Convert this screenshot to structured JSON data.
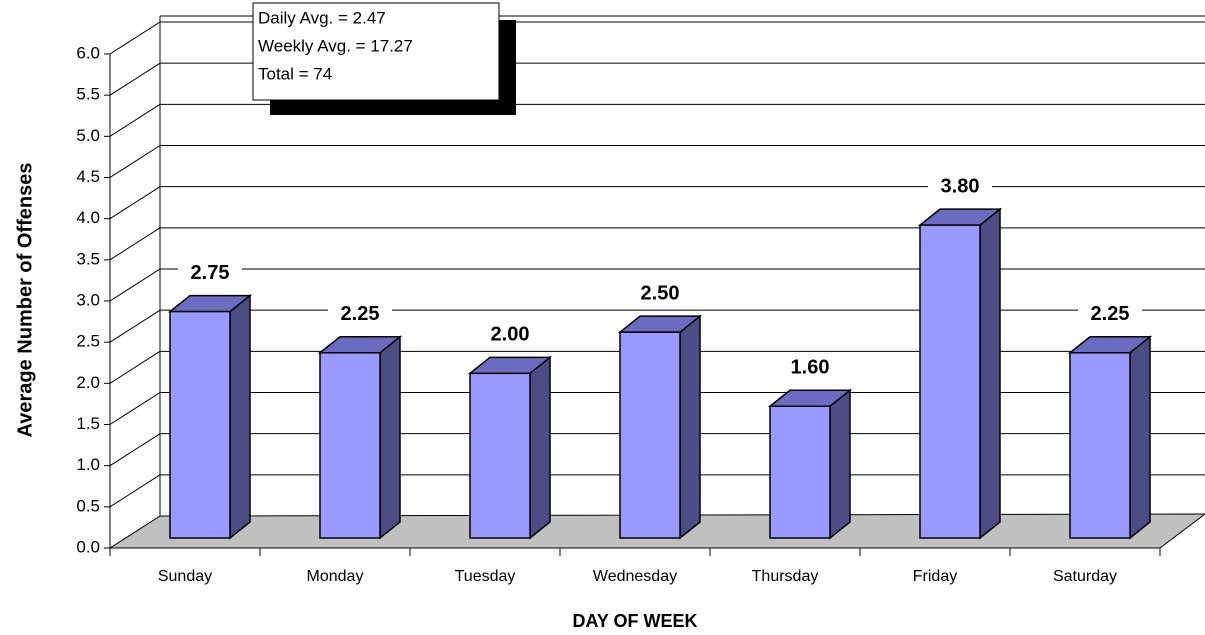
{
  "chart_data": {
    "type": "bar3d",
    "ylabel": "Average Number of Offenses",
    "xlabel": "DAY OF WEEK",
    "annotation": [
      "Daily Avg. = 2.47",
      "Weekly Avg. = 17.27",
      "Total = 74"
    ],
    "categories": [
      "Sunday",
      "Monday",
      "Tuesday",
      "Wednesday",
      "Thursday",
      "Friday",
      "Saturday"
    ],
    "values": [
      2.75,
      2.25,
      2.0,
      2.5,
      1.6,
      3.8,
      2.25
    ],
    "value_labels": [
      "2.75",
      "2.25",
      "2.00",
      "2.50",
      "1.60",
      "3.80",
      "2.25"
    ],
    "color": "#9999ff",
    "ylim": [
      0,
      6
    ],
    "yticks": [
      {
        "value": 0,
        "label": "0.0"
      },
      {
        "value": 0.5,
        "label": "0.5"
      },
      {
        "value": 1,
        "label": "1.0"
      },
      {
        "value": 1.5,
        "label": "1.5"
      },
      {
        "value": 2,
        "label": "2.0"
      },
      {
        "value": 2.5,
        "label": "2.5"
      },
      {
        "value": 3,
        "label": "3.0"
      },
      {
        "value": 3.5,
        "label": "3.5"
      },
      {
        "value": 4,
        "label": "4.0"
      },
      {
        "value": 4.5,
        "label": "4.5"
      },
      {
        "value": 5,
        "label": "5.0"
      },
      {
        "value": 5.5,
        "label": "5.5"
      },
      {
        "value": 6,
        "label": "6.0"
      }
    ],
    "grid": true
  }
}
